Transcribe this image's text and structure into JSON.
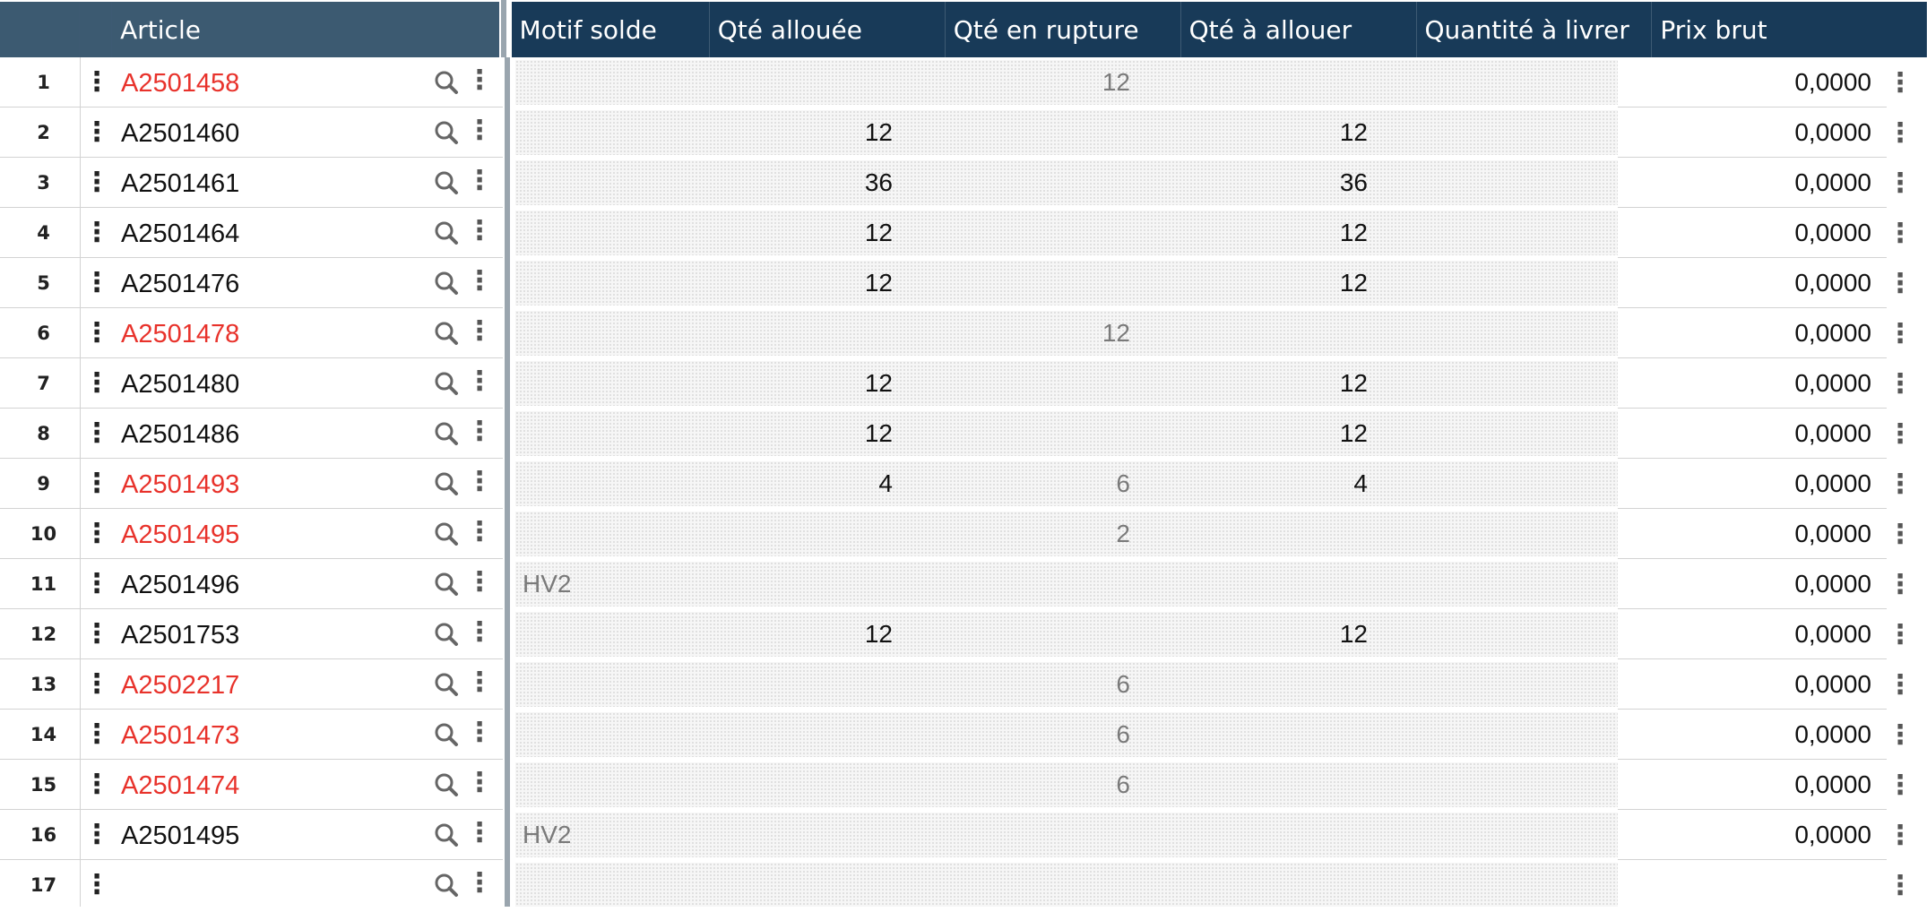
{
  "columns": {
    "article": "Article",
    "motif_solde": "Motif solde",
    "qte_allouee": "Qté allouée",
    "qte_rupture": "Qté en rupture",
    "qte_a_allouer": "Qté à allouer",
    "quantite_livrer": "Quantité à livrer",
    "prix_brut": "Prix brut"
  },
  "icons": {
    "row_menu": "kebab-icon",
    "search": "search-icon",
    "action_menu": "kebab-icon"
  },
  "colors": {
    "header": "#183a58",
    "header_frozen": "#3c5a71",
    "warning_text": "#e8322b"
  },
  "rows": [
    {
      "num": "1",
      "article": "A2501458",
      "warn": true,
      "motif": "",
      "qte_allouee": "",
      "qte_rupture": "12",
      "qte_a_allouer": "",
      "qte_livrer": "",
      "prix": "0,0000"
    },
    {
      "num": "2",
      "article": "A2501460",
      "warn": false,
      "motif": "",
      "qte_allouee": "12",
      "qte_rupture": "",
      "qte_a_allouer": "12",
      "qte_livrer": "",
      "prix": "0,0000"
    },
    {
      "num": "3",
      "article": "A2501461",
      "warn": false,
      "motif": "",
      "qte_allouee": "36",
      "qte_rupture": "",
      "qte_a_allouer": "36",
      "qte_livrer": "",
      "prix": "0,0000"
    },
    {
      "num": "4",
      "article": "A2501464",
      "warn": false,
      "motif": "",
      "qte_allouee": "12",
      "qte_rupture": "",
      "qte_a_allouer": "12",
      "qte_livrer": "",
      "prix": "0,0000"
    },
    {
      "num": "5",
      "article": "A2501476",
      "warn": false,
      "motif": "",
      "qte_allouee": "12",
      "qte_rupture": "",
      "qte_a_allouer": "12",
      "qte_livrer": "",
      "prix": "0,0000"
    },
    {
      "num": "6",
      "article": "A2501478",
      "warn": true,
      "motif": "",
      "qte_allouee": "",
      "qte_rupture": "12",
      "qte_a_allouer": "",
      "qte_livrer": "",
      "prix": "0,0000"
    },
    {
      "num": "7",
      "article": "A2501480",
      "warn": false,
      "motif": "",
      "qte_allouee": "12",
      "qte_rupture": "",
      "qte_a_allouer": "12",
      "qte_livrer": "",
      "prix": "0,0000"
    },
    {
      "num": "8",
      "article": "A2501486",
      "warn": false,
      "motif": "",
      "qte_allouee": "12",
      "qte_rupture": "",
      "qte_a_allouer": "12",
      "qte_livrer": "",
      "prix": "0,0000"
    },
    {
      "num": "9",
      "article": "A2501493",
      "warn": true,
      "motif": "",
      "qte_allouee": "4",
      "qte_rupture": "6",
      "qte_a_allouer": "4",
      "qte_livrer": "",
      "prix": "0,0000"
    },
    {
      "num": "10",
      "article": "A2501495",
      "warn": true,
      "motif": "",
      "qte_allouee": "",
      "qte_rupture": "2",
      "qte_a_allouer": "",
      "qte_livrer": "",
      "prix": "0,0000"
    },
    {
      "num": "11",
      "article": "A2501496",
      "warn": false,
      "motif": "HV2",
      "qte_allouee": "",
      "qte_rupture": "",
      "qte_a_allouer": "",
      "qte_livrer": "",
      "prix": "0,0000"
    },
    {
      "num": "12",
      "article": "A2501753",
      "warn": false,
      "motif": "",
      "qte_allouee": "12",
      "qte_rupture": "",
      "qte_a_allouer": "12",
      "qte_livrer": "",
      "prix": "0,0000"
    },
    {
      "num": "13",
      "article": "A2502217",
      "warn": true,
      "motif": "",
      "qte_allouee": "",
      "qte_rupture": "6",
      "qte_a_allouer": "",
      "qte_livrer": "",
      "prix": "0,0000"
    },
    {
      "num": "14",
      "article": "A2501473",
      "warn": true,
      "motif": "",
      "qte_allouee": "",
      "qte_rupture": "6",
      "qte_a_allouer": "",
      "qte_livrer": "",
      "prix": "0,0000"
    },
    {
      "num": "15",
      "article": "A2501474",
      "warn": true,
      "motif": "",
      "qte_allouee": "",
      "qte_rupture": "6",
      "qte_a_allouer": "",
      "qte_livrer": "",
      "prix": "0,0000"
    },
    {
      "num": "16",
      "article": "A2501495",
      "warn": false,
      "motif": "HV2",
      "qte_allouee": "",
      "qte_rupture": "",
      "qte_a_allouer": "",
      "qte_livrer": "",
      "prix": "0,0000"
    },
    {
      "num": "17",
      "article": "",
      "warn": false,
      "motif": "",
      "qte_allouee": "",
      "qte_rupture": "",
      "qte_a_allouer": "",
      "qte_livrer": "",
      "prix": ""
    }
  ]
}
